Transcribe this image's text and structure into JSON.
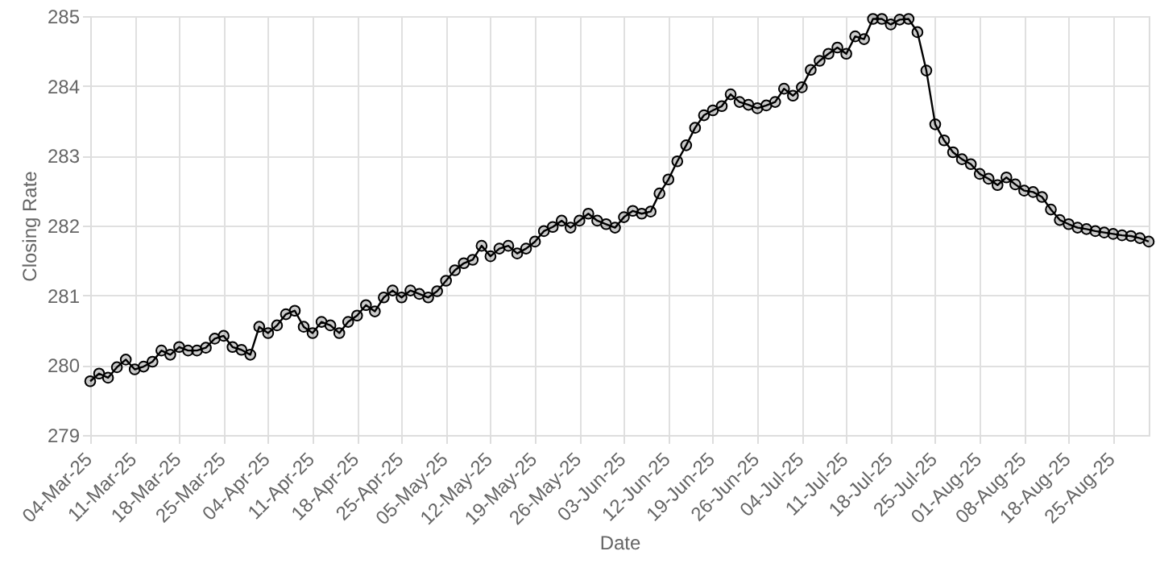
{
  "chart_data": {
    "type": "line",
    "xlabel": "Date",
    "ylabel": "Closing Rate",
    "categories": [
      "04-Mar-25",
      null,
      null,
      null,
      null,
      "11-Mar-25",
      null,
      null,
      null,
      null,
      "18-Mar-25",
      null,
      null,
      null,
      null,
      "25-Mar-25",
      null,
      null,
      null,
      null,
      "04-Apr-25",
      null,
      null,
      null,
      null,
      "11-Apr-25",
      null,
      null,
      null,
      null,
      "18-Apr-25",
      null,
      null,
      null,
      null,
      "25-Apr-25",
      null,
      null,
      null,
      null,
      "05-May-25",
      null,
      null,
      null,
      null,
      "12-May-25",
      null,
      null,
      null,
      null,
      "19-May-25",
      null,
      null,
      null,
      null,
      "26-May-25",
      null,
      null,
      null,
      null,
      "03-Jun-25",
      null,
      null,
      null,
      null,
      "12-Jun-25",
      null,
      null,
      null,
      null,
      "19-Jun-25",
      null,
      null,
      null,
      null,
      "26-Jun-25",
      null,
      null,
      null,
      null,
      "04-Jul-25",
      null,
      null,
      null,
      null,
      "11-Jul-25",
      null,
      null,
      null,
      null,
      "18-Jul-25",
      null,
      null,
      null,
      null,
      "25-Jul-25",
      null,
      null,
      null,
      null,
      "01-Aug-25",
      null,
      null,
      null,
      null,
      "08-Aug-25",
      null,
      null,
      null,
      null,
      "18-Aug-25",
      null,
      null,
      null,
      null,
      "25-Aug-25",
      null,
      null,
      null,
      null
    ],
    "series": [
      {
        "color": "#000000",
        "values": [
          279.77,
          279.88,
          279.82,
          279.97,
          280.08,
          279.94,
          279.98,
          280.05,
          280.21,
          280.15,
          280.26,
          280.21,
          280.21,
          280.25,
          280.38,
          280.42,
          280.26,
          280.22,
          280.15,
          280.55,
          280.46,
          280.57,
          280.73,
          280.78,
          280.55,
          280.46,
          280.62,
          280.57,
          280.46,
          280.62,
          280.71,
          280.86,
          280.77,
          280.97,
          281.07,
          280.97,
          281.07,
          281.02,
          280.97,
          281.06,
          281.21,
          281.36,
          281.46,
          281.51,
          281.71,
          281.56,
          281.67,
          281.71,
          281.6,
          281.67,
          281.77,
          281.92,
          281.98,
          282.07,
          281.97,
          282.07,
          282.17,
          282.07,
          282.02,
          281.97,
          282.12,
          282.21,
          282.17,
          282.2,
          282.46,
          282.66,
          282.92,
          283.15,
          283.4,
          283.58,
          283.65,
          283.71,
          283.88,
          283.77,
          283.73,
          283.68,
          283.72,
          283.77,
          283.96,
          283.86,
          283.98,
          284.23,
          284.36,
          284.46,
          284.55,
          284.46,
          284.71,
          284.67,
          284.96,
          284.96,
          284.88,
          284.95,
          284.96,
          284.77,
          284.22,
          283.45,
          283.22,
          283.05,
          282.95,
          282.88,
          282.74,
          282.67,
          282.58,
          282.69,
          282.59,
          282.5,
          282.48,
          282.41,
          282.23,
          282.08,
          282.02,
          281.97,
          281.95,
          281.92,
          281.9,
          281.88,
          281.86,
          281.85,
          281.82,
          281.77
        ]
      }
    ],
    "ylim": [
      279,
      285
    ],
    "yticks": [
      279,
      280,
      281,
      282,
      283,
      284,
      285
    ],
    "grid": true,
    "marker": "circle",
    "line_style": "solid"
  }
}
